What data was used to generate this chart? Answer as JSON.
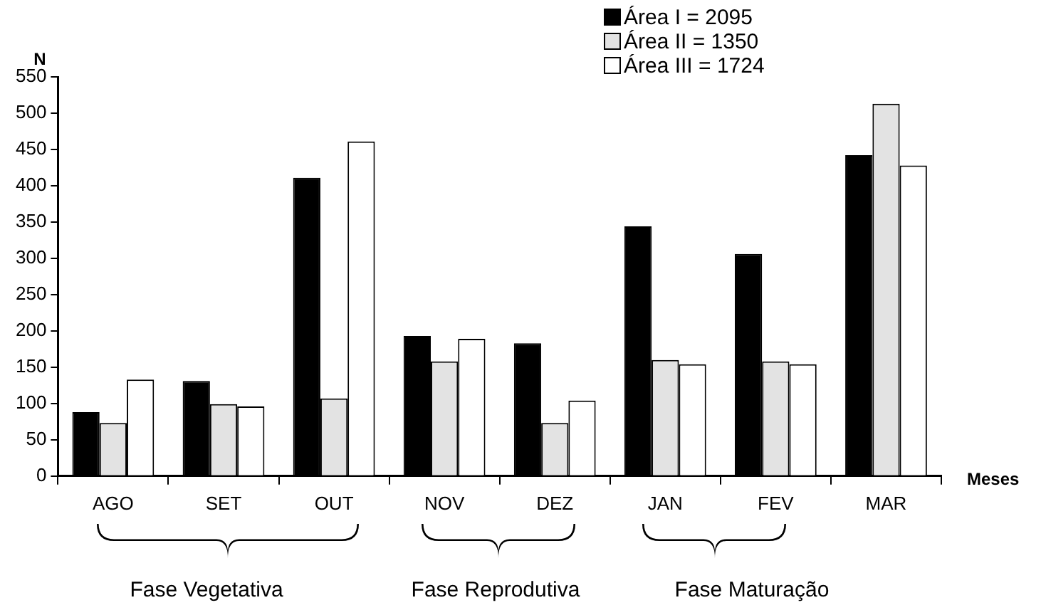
{
  "chart_data": {
    "type": "bar",
    "ylabel": "N",
    "xlabel": "Meses",
    "categories": [
      "AGO",
      "SET",
      "OUT",
      "NOV",
      "DEZ",
      "JAN",
      "FEV",
      "MAR"
    ],
    "series": [
      {
        "name": "Área I = 2095",
        "color": "#000000",
        "values": [
          88,
          131,
          411,
          193,
          183,
          344,
          306,
          442
        ]
      },
      {
        "name": "Área II = 1350",
        "color": "#e3e3e3",
        "values": [
          73,
          99,
          107,
          158,
          73,
          160,
          158,
          513
        ]
      },
      {
        "name": "Área III = 1724",
        "color": "#ffffff",
        "values": [
          133,
          96,
          461,
          189,
          104,
          154,
          154,
          428
        ]
      }
    ],
    "ylim": [
      0,
      550
    ],
    "yticks": [
      0,
      50,
      100,
      150,
      200,
      250,
      300,
      350,
      400,
      450,
      500,
      550
    ],
    "grid": false,
    "legend": "top right",
    "annotations": [
      "Fase Vegetativa",
      "Fase Reprodutiva",
      "Fase Maturação"
    ]
  }
}
